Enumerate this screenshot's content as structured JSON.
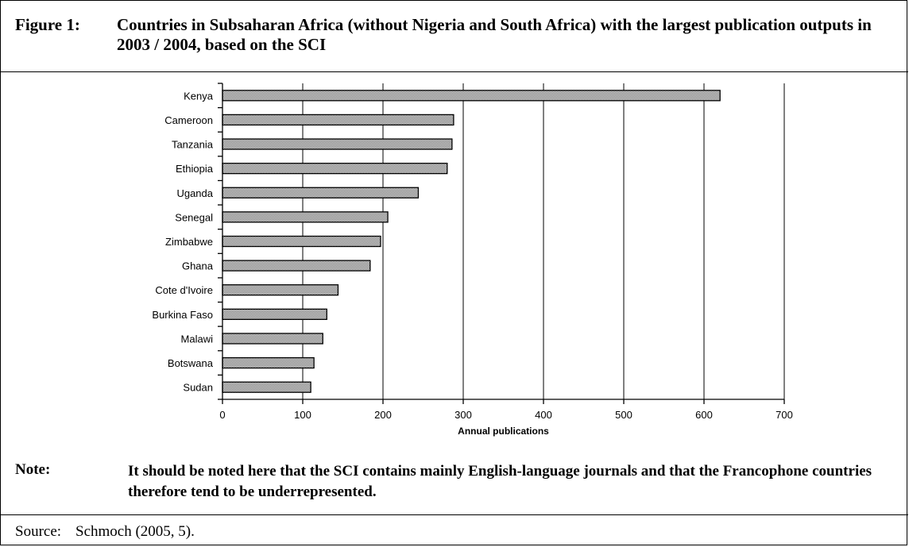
{
  "figure": {
    "label": "Figure 1:",
    "title": "Countries in Subsaharan Africa (without Nigeria and South Africa) with the largest publication outputs in 2003 / 2004, based on the SCI"
  },
  "note": {
    "label": "Note:",
    "text": "It should be noted here that the SCI contains mainly English-language journals and that the Francophone countries therefore tend to be underrepresented."
  },
  "source": {
    "label": "Source:",
    "text": "Schmoch (2005, 5)."
  },
  "chart_data": {
    "type": "bar",
    "orientation": "horizontal",
    "categories": [
      "Kenya",
      "Cameroon",
      "Tanzania",
      "Ethiopia",
      "Uganda",
      "Senegal",
      "Zimbabwe",
      "Ghana",
      "Cote d'Ivoire",
      "Burkina Faso",
      "Malawi",
      "Botswana",
      "Sudan"
    ],
    "values": [
      620,
      288,
      286,
      280,
      244,
      206,
      197,
      184,
      144,
      130,
      125,
      114,
      110
    ],
    "xlabel": "Annual publications",
    "ylabel": "",
    "xlim": [
      0,
      700
    ],
    "xticks": [
      0,
      100,
      200,
      300,
      400,
      500,
      600,
      700
    ],
    "grid": "vertical",
    "bar_fill": "dotted-grey",
    "legend": "none"
  }
}
